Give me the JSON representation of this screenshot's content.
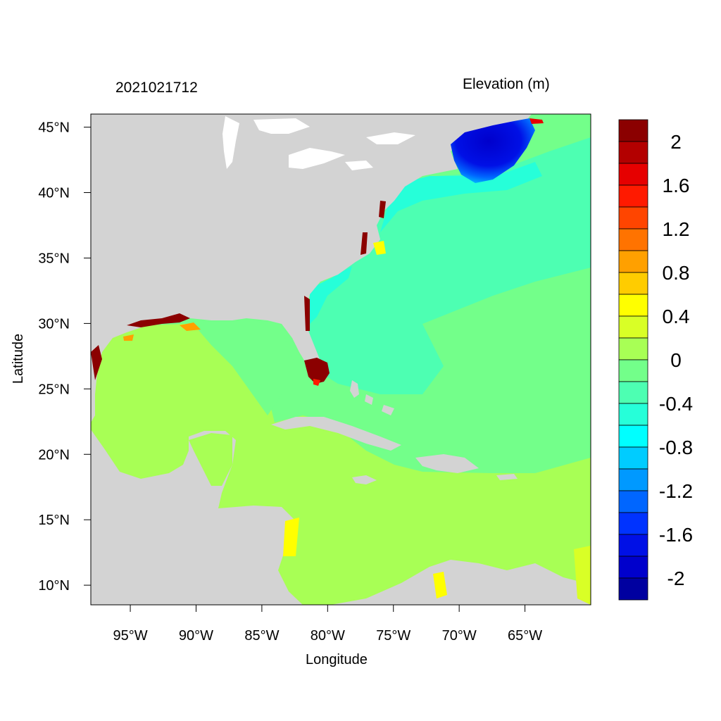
{
  "header": {
    "datetime": "2021021712",
    "variable": "Elevation (m)"
  },
  "axes": {
    "xlabel": "Longitude",
    "ylabel": "Latitude",
    "x_ticks": [
      "95°W",
      "90°W",
      "85°W",
      "80°W",
      "75°W",
      "70°W",
      "65°W"
    ],
    "x_tick_values": [
      -95,
      -90,
      -85,
      -80,
      -75,
      -70,
      -65
    ],
    "y_ticks": [
      "45°N",
      "40°N",
      "35°N",
      "30°N",
      "25°N",
      "20°N",
      "15°N",
      "10°N"
    ],
    "y_tick_values": [
      45,
      40,
      35,
      30,
      25,
      20,
      15,
      10
    ],
    "lon_range": [
      -98,
      -60
    ],
    "lat_range": [
      8.5,
      46
    ]
  },
  "colorbar": {
    "labels": [
      "2",
      "1.6",
      "1.2",
      "0.8",
      "0.4",
      "0",
      "-0.4",
      "-0.8",
      "-1.2",
      "-1.6",
      "-2"
    ],
    "colors": [
      "#8b0000",
      "#b30000",
      "#e60000",
      "#ff1a00",
      "#ff4500",
      "#ff7300",
      "#ffa000",
      "#ffcc00",
      "#ffff00",
      "#d9ff26",
      "#a8ff55",
      "#73ff8a",
      "#4dffb2",
      "#26ffd9",
      "#00ffff",
      "#00ccff",
      "#0099ff",
      "#0066ff",
      "#0033ff",
      "#0010e6",
      "#0000cc",
      "#0000a0"
    ]
  },
  "map_colors": {
    "land": "#d3d3d3",
    "water_lakes": "#ffffff",
    "gulf_caribbean": "#a8ff55",
    "atlantic_open": "#73ff8a",
    "atlantic_shelf": "#4dffb2",
    "coastal_low": "#26ffd9",
    "gulf_of_maine": "#0010e6",
    "positive_surge": "#8b0000"
  }
}
